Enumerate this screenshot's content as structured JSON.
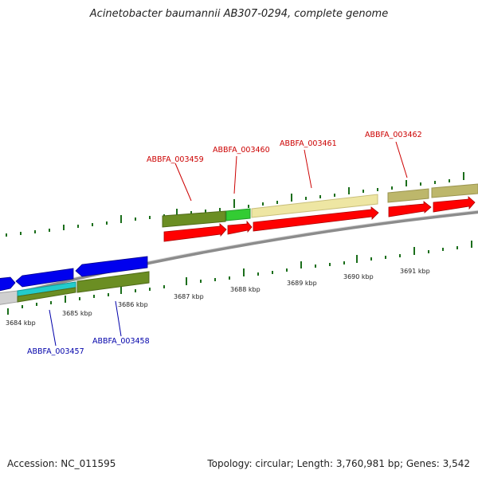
{
  "title": "Acinetobacter baumannii AB307-0294, complete genome",
  "footer": {
    "accession": "Accession: NC_011595",
    "summary": "Topology: circular; Length: 3,760,981 bp; Genes: 3,542"
  },
  "colors": {
    "backbone": "#8c8c8c",
    "tick": "#1b6e1b",
    "forward_label": "#cc0000",
    "reverse_label": "#0000aa",
    "cds_forward": "#ff0000",
    "cds_reverse": "#0000ee"
  },
  "scale_labels": [
    "3684 kbp",
    "3685 kbp",
    "3686 kbp",
    "3687 kbp",
    "3688 kbp",
    "3689 kbp",
    "3690 kbp",
    "3691 kbp"
  ],
  "forward_gene_labels": [
    "ABBFA_003459",
    "ABBFA_003460",
    "ABBFA_003461",
    "ABBFA_003462"
  ],
  "reverse_gene_labels": [
    "ABBFA_003457",
    "ABBFA_003458"
  ]
}
